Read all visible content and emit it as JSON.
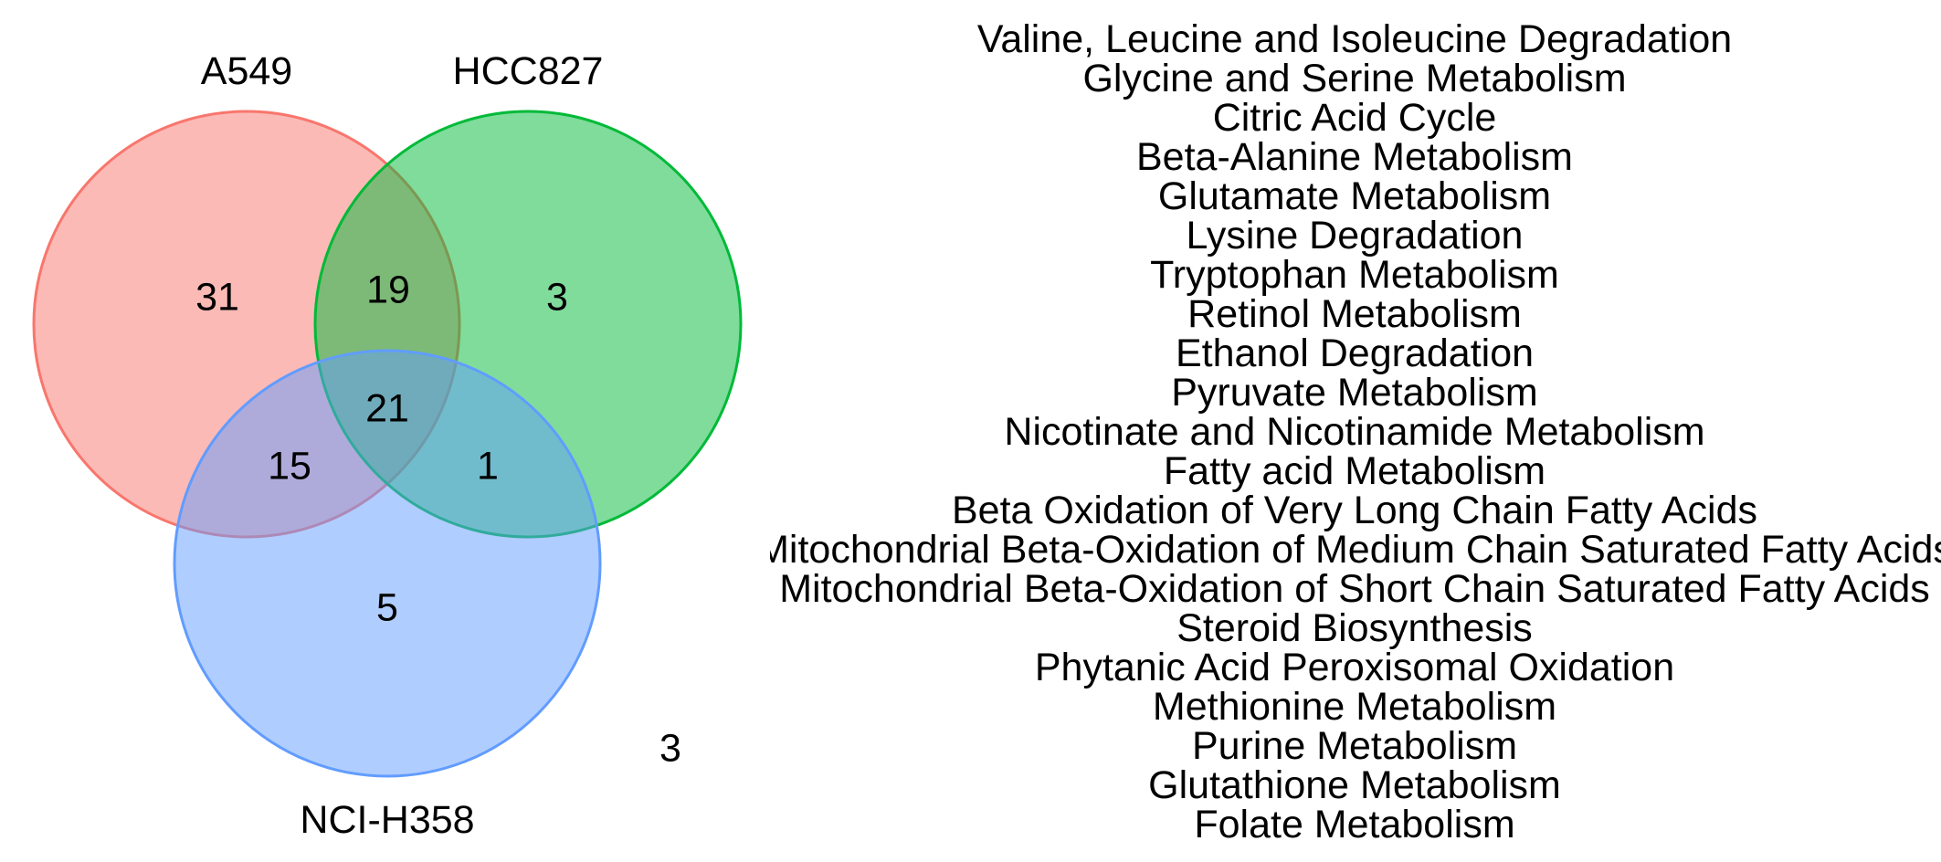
{
  "venn": {
    "sets": [
      {
        "name": "A549",
        "color": "#F8766D"
      },
      {
        "name": "HCC827",
        "color": "#00BA38"
      },
      {
        "name": "NCI-H358",
        "color": "#619CFF"
      }
    ],
    "regions": {
      "a549_only": "31",
      "a549_hcc827": "19",
      "hcc827_only": "3",
      "all_three": "21",
      "a549_nci": "15",
      "hcc827_nci": "1",
      "nci_only": "5",
      "outside": "3"
    }
  },
  "pathways": [
    "Valine, Leucine and Isoleucine Degradation",
    "Glycine and Serine Metabolism",
    "Citric Acid Cycle",
    "Beta-Alanine Metabolism",
    "Glutamate Metabolism",
    "Lysine Degradation",
    "Tryptophan Metabolism",
    "Retinol Metabolism",
    "Ethanol Degradation",
    "Pyruvate Metabolism",
    "Nicotinate and Nicotinamide Metabolism",
    "Fatty acid Metabolism",
    "Beta Oxidation of Very Long Chain Fatty Acids",
    "Mitochondrial Beta-Oxidation of Medium Chain Saturated Fatty Acids",
    "Mitochondrial Beta-Oxidation of Short Chain Saturated Fatty Acids",
    "Steroid Biosynthesis",
    "Phytanic Acid Peroxisomal Oxidation",
    "Methionine Metabolism",
    "Purine Metabolism",
    "Glutathione Metabolism",
    "Folate Metabolism"
  ]
}
